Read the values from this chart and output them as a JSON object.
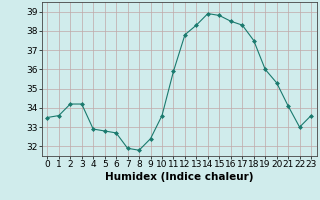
{
  "x": [
    0,
    1,
    2,
    3,
    4,
    5,
    6,
    7,
    8,
    9,
    10,
    11,
    12,
    13,
    14,
    15,
    16,
    17,
    18,
    19,
    20,
    21,
    22,
    23
  ],
  "y": [
    33.5,
    33.6,
    34.2,
    34.2,
    32.9,
    32.8,
    32.7,
    31.9,
    31.8,
    32.4,
    33.6,
    35.9,
    37.8,
    38.3,
    38.9,
    38.8,
    38.5,
    38.3,
    37.5,
    36.0,
    35.3,
    34.1,
    33.0,
    33.6
  ],
  "line_color": "#1a7a6e",
  "marker": "D",
  "marker_size": 2.0,
  "bg_color": "#d0ecec",
  "grid_color": "#c0a8a8",
  "xlabel": "Humidex (Indice chaleur)",
  "xlabel_fontsize": 7.5,
  "tick_fontsize": 6.5,
  "xlim": [
    -0.5,
    23.5
  ],
  "ylim": [
    31.5,
    39.5
  ],
  "yticks": [
    32,
    33,
    34,
    35,
    36,
    37,
    38,
    39
  ],
  "xticks": [
    0,
    1,
    2,
    3,
    4,
    5,
    6,
    7,
    8,
    9,
    10,
    11,
    12,
    13,
    14,
    15,
    16,
    17,
    18,
    19,
    20,
    21,
    22,
    23
  ]
}
